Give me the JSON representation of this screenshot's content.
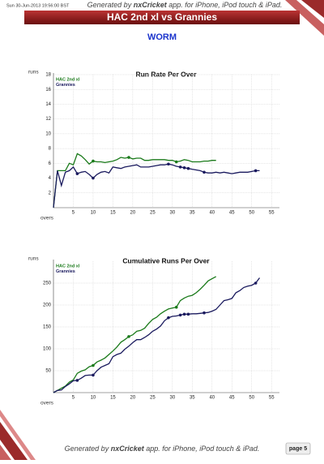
{
  "header": {
    "date": "Sun 30-Jun-2013 19:56:00 BST",
    "generated": [
      "Generated by ",
      "nxCricket",
      " app. for iPhone, iPod touch & iPad."
    ]
  },
  "title": "HAC 2nd xl vs Grannies",
  "heading": "WORM",
  "chart_data": [
    {
      "type": "line",
      "title": "Run Rate Per Over",
      "y_label": "runs",
      "x_label": "overs",
      "grid": true,
      "legend": "upper left",
      "xlim": [
        0,
        57
      ],
      "xticks": [
        5,
        10,
        15,
        20,
        25,
        30,
        35,
        40,
        45,
        50,
        55
      ],
      "ylim": [
        0,
        18
      ],
      "yticks": [
        2,
        4,
        6,
        8,
        10,
        12,
        14,
        16,
        18
      ],
      "x": [
        0,
        1,
        2,
        3,
        4,
        5,
        6,
        7,
        8,
        9,
        10,
        11,
        12,
        13,
        14,
        15,
        16,
        17,
        18,
        19,
        20,
        21,
        22,
        23,
        24,
        25,
        26,
        27,
        28,
        29,
        30,
        31,
        32,
        33,
        34,
        35,
        36,
        37,
        38,
        39,
        40,
        41,
        42,
        43,
        44,
        45,
        46,
        47,
        48,
        49,
        50,
        51,
        52
      ],
      "series": [
        {
          "name": "HAC 2nd xl",
          "color": "#1a7a1a",
          "wickets": [
            10,
            19,
            31
          ],
          "values": [
            0,
            5,
            5,
            5,
            6,
            5.8,
            7.3,
            7,
            6.5,
            5.9,
            6.3,
            6.2,
            6.2,
            6.1,
            6.2,
            6.3,
            6.5,
            6.8,
            6.7,
            6.8,
            6.6,
            6.7,
            6.7,
            6.4,
            6.4,
            6.5,
            6.5,
            6.5,
            6.5,
            6.4,
            6.4,
            6.2,
            6.3,
            6.5,
            6.4,
            6.2,
            6.2,
            6.2,
            6.3,
            6.3,
            6.4,
            6.4,
            null,
            null,
            null,
            null,
            null,
            null,
            null,
            null,
            null,
            null,
            null
          ]
        },
        {
          "name": "Grannies",
          "color": "#1a1a5e",
          "wickets": [
            6,
            10,
            29,
            32,
            33,
            34,
            38,
            51
          ],
          "values": [
            0,
            5,
            3,
            4.8,
            5,
            5.5,
            4.6,
            4.8,
            4.9,
            4.5,
            4,
            4.5,
            4.8,
            4.9,
            4.7,
            5.5,
            5.4,
            5.3,
            5.5,
            5.6,
            5.7,
            5.8,
            5.5,
            5.5,
            5.5,
            5.6,
            5.7,
            5.8,
            5.8,
            5.9,
            5.8,
            5.6,
            5.5,
            5.4,
            5.3,
            5.2,
            5.1,
            5,
            4.8,
            4.7,
            4.7,
            4.8,
            4.7,
            4.8,
            4.7,
            4.6,
            4.7,
            4.8,
            4.8,
            4.8,
            4.9,
            5,
            5
          ]
        }
      ]
    },
    {
      "type": "line",
      "title": "Cumulative Runs Per Over",
      "y_label": "runs",
      "x_label": "overs",
      "grid": true,
      "legend": "upper left",
      "xlim": [
        0,
        57
      ],
      "xticks": [
        5,
        10,
        15,
        20,
        25,
        30,
        35,
        40,
        45,
        50,
        55
      ],
      "ylim": [
        0,
        300
      ],
      "yticks": [
        50,
        100,
        150,
        200,
        250
      ],
      "x": [
        0,
        1,
        2,
        3,
        4,
        5,
        6,
        7,
        8,
        9,
        10,
        11,
        12,
        13,
        14,
        15,
        16,
        17,
        18,
        19,
        20,
        21,
        22,
        23,
        24,
        25,
        26,
        27,
        28,
        29,
        30,
        31,
        32,
        33,
        34,
        35,
        36,
        37,
        38,
        39,
        40,
        41,
        42,
        43,
        44,
        45,
        46,
        47,
        48,
        49,
        50,
        51,
        52
      ],
      "series": [
        {
          "name": "HAC 2nd xl",
          "color": "#1a7a1a",
          "wickets": [
            10,
            19,
            31
          ],
          "values": [
            0,
            5,
            10,
            15,
            24,
            29,
            44,
            49,
            52,
            59,
            62,
            70,
            74,
            79,
            87,
            95,
            104,
            115,
            121,
            128,
            132,
            140,
            142,
            147,
            158,
            167,
            172,
            180,
            186,
            191,
            193,
            195,
            210,
            216,
            220,
            222,
            228,
            236,
            245,
            255,
            260,
            265,
            null,
            null,
            null,
            null,
            null,
            null,
            null,
            null,
            null,
            null,
            null
          ]
        },
        {
          "name": "Grannies",
          "color": "#1a1a5e",
          "wickets": [
            6,
            10,
            29,
            32,
            33,
            34,
            38,
            51
          ],
          "values": [
            0,
            5,
            6,
            14,
            20,
            27,
            28,
            33,
            39,
            40,
            40,
            50,
            58,
            62,
            66,
            82,
            87,
            90,
            99,
            106,
            114,
            121,
            121,
            126,
            132,
            140,
            145,
            152,
            164,
            171,
            174,
            175,
            177,
            179,
            179,
            180,
            180,
            181,
            182,
            183,
            186,
            190,
            200,
            210,
            212,
            215,
            228,
            233,
            240,
            243,
            245,
            250,
            262
          ]
        }
      ]
    }
  ],
  "footer": {
    "generated": [
      "Generated by ",
      "nxCricket",
      " app. for iPhone, iPod touch & iPad."
    ],
    "page": "page 5"
  }
}
